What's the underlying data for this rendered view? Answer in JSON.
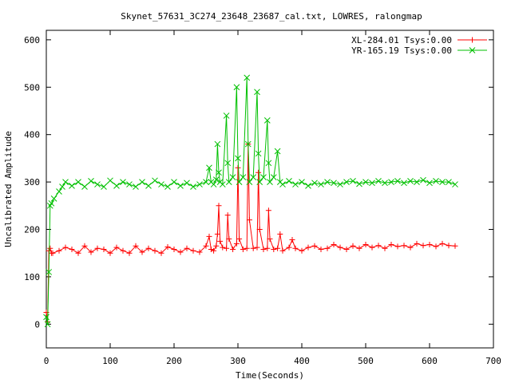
{
  "chart_data": {
    "type": "line",
    "title": "Skynet_57631_3C274_23648_23687_cal.txt, LOWRES, ralongmap",
    "xlabel": "Time(Seconds)",
    "ylabel": "Uncalibrated Amplitude",
    "xlim": [
      0,
      700
    ],
    "ylim": [
      -50,
      620
    ],
    "xticks": [
      0,
      100,
      200,
      300,
      400,
      500,
      600,
      700
    ],
    "yticks": [
      0,
      100,
      200,
      300,
      400,
      500,
      600
    ],
    "grid": false,
    "legend_position": "top-right",
    "series": [
      {
        "name": "XL-284.01 Tsys:0.00",
        "color": "#ff0000",
        "marker": "plus",
        "x": [
          0,
          2,
          4,
          6,
          8,
          10,
          20,
          30,
          40,
          50,
          60,
          70,
          80,
          90,
          100,
          110,
          120,
          130,
          140,
          150,
          160,
          170,
          180,
          190,
          200,
          210,
          220,
          230,
          240,
          250,
          255,
          258,
          262,
          266,
          268,
          270,
          272,
          276,
          282,
          284,
          286,
          292,
          298,
          300,
          302,
          308,
          314,
          316,
          318,
          324,
          330,
          332,
          334,
          340,
          346,
          348,
          350,
          356,
          362,
          366,
          370,
          380,
          385,
          390,
          400,
          410,
          420,
          430,
          440,
          450,
          460,
          470,
          480,
          490,
          500,
          510,
          520,
          530,
          540,
          550,
          560,
          570,
          580,
          590,
          600,
          610,
          620,
          630,
          640
        ],
        "y": [
          25,
          5,
          155,
          160,
          150,
          150,
          155,
          162,
          158,
          150,
          165,
          152,
          160,
          158,
          150,
          162,
          155,
          150,
          165,
          152,
          160,
          155,
          150,
          163,
          158,
          152,
          160,
          155,
          152,
          165,
          185,
          158,
          155,
          165,
          190,
          250,
          175,
          162,
          160,
          230,
          180,
          158,
          170,
          330,
          180,
          158,
          160,
          380,
          220,
          160,
          162,
          320,
          200,
          158,
          160,
          240,
          180,
          158,
          160,
          190,
          155,
          162,
          178,
          160,
          155,
          162,
          165,
          158,
          160,
          168,
          162,
          158,
          165,
          160,
          168,
          162,
          166,
          160,
          168,
          164,
          166,
          162,
          170,
          166,
          168,
          164,
          170,
          166,
          165
        ]
      },
      {
        "name": "YR-165.19 Tsys:0.00",
        "color": "#00c000",
        "marker": "x",
        "x": [
          0,
          2,
          4,
          6,
          8,
          12,
          20,
          25,
          30,
          40,
          50,
          60,
          70,
          80,
          90,
          100,
          110,
          120,
          130,
          140,
          150,
          160,
          170,
          180,
          190,
          200,
          210,
          220,
          230,
          240,
          250,
          255,
          258,
          262,
          266,
          268,
          270,
          272,
          276,
          282,
          284,
          286,
          292,
          298,
          300,
          302,
          308,
          314,
          316,
          318,
          324,
          330,
          332,
          334,
          340,
          346,
          348,
          350,
          356,
          362,
          366,
          370,
          380,
          390,
          400,
          410,
          420,
          430,
          440,
          450,
          460,
          470,
          480,
          490,
          500,
          510,
          520,
          530,
          540,
          550,
          560,
          570,
          580,
          590,
          600,
          610,
          620,
          630,
          640
        ],
        "y": [
          15,
          0,
          110,
          250,
          255,
          265,
          280,
          290,
          300,
          292,
          300,
          290,
          302,
          295,
          290,
          303,
          292,
          300,
          295,
          290,
          300,
          292,
          303,
          295,
          290,
          300,
          292,
          298,
          290,
          295,
          300,
          330,
          300,
          295,
          305,
          380,
          320,
          300,
          295,
          440,
          340,
          300,
          310,
          500,
          350,
          300,
          310,
          520,
          380,
          300,
          310,
          490,
          360,
          300,
          310,
          430,
          340,
          300,
          310,
          365,
          300,
          295,
          302,
          295,
          300,
          292,
          298,
          295,
          300,
          298,
          295,
          300,
          302,
          296,
          300,
          298,
          302,
          298,
          300,
          302,
          298,
          302,
          300,
          304,
          298,
          302,
          300,
          300,
          295
        ]
      }
    ]
  }
}
